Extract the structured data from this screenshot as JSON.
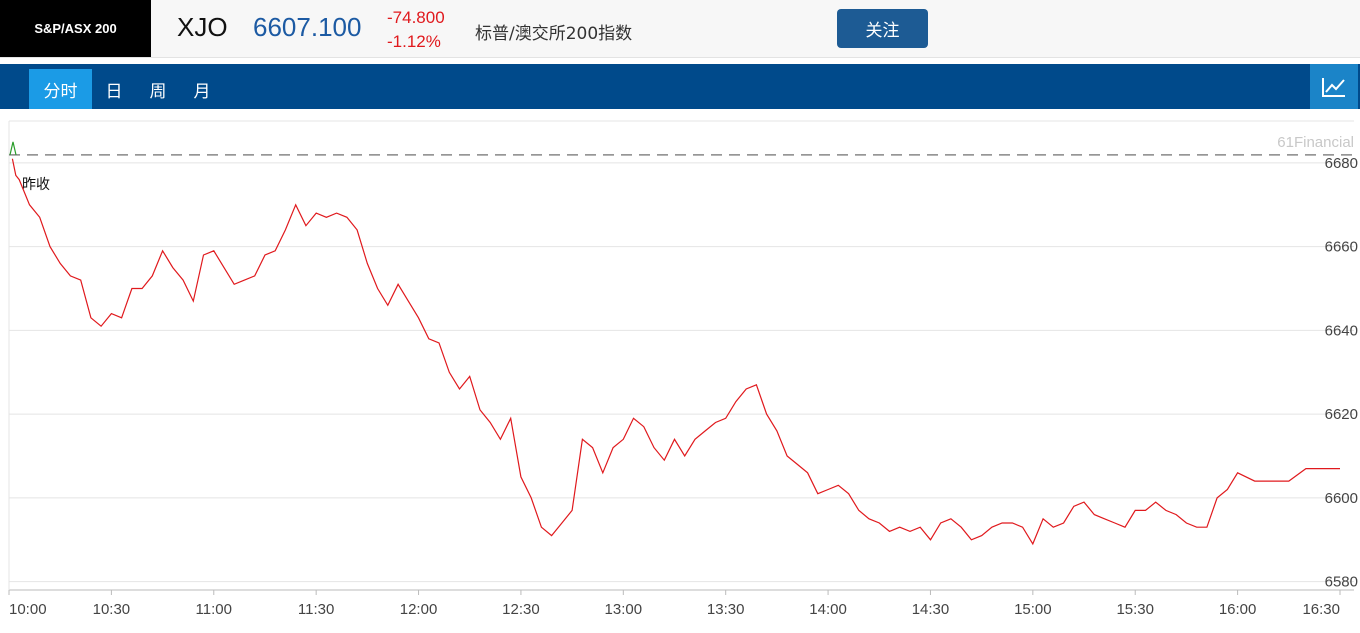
{
  "header": {
    "index_badge": "S&P/ASX 200",
    "symbol": "XJO",
    "price": "6607.100",
    "change": "-74.800",
    "change_pct": "-1.12%",
    "name": "标普/澳交所200指数",
    "follow_label": "关注"
  },
  "tabs": [
    {
      "label": "分时",
      "active": true
    },
    {
      "label": "日",
      "active": false
    },
    {
      "label": "周",
      "active": false
    },
    {
      "label": "月",
      "active": false
    }
  ],
  "chart_toggle_icon": "line-chart-icon",
  "colors": {
    "price_line": "#e0191d",
    "prev_close_up": "#2a9d2a",
    "up": "#2a9d2a",
    "down": "#e0191d",
    "accent": "#004a8b"
  },
  "chart_data": {
    "type": "line",
    "brand": "61Financial",
    "prev_close_label": "昨收",
    "prev_close": 6681.9,
    "x_ticks": [
      "10:00",
      "10:30",
      "11:00",
      "11:30",
      "12:00",
      "12:30",
      "13:00",
      "13:30",
      "14:00",
      "14:30",
      "15:00",
      "15:30",
      "16:00",
      "16:30"
    ],
    "y_ticks": [
      "6580",
      "6600",
      "6620",
      "6640",
      "6660",
      "6680"
    ],
    "ylim": [
      6578,
      6690
    ],
    "xlim": [
      "10:00",
      "16:30"
    ],
    "series": [
      {
        "x": [
          "10:00",
          "10:01",
          "10:02",
          "10:03",
          "10:06",
          "10:09",
          "10:12",
          "10:15",
          "10:18",
          "10:21",
          "10:24",
          "10:27",
          "10:30",
          "10:33",
          "10:36",
          "10:39",
          "10:42",
          "10:45",
          "10:48",
          "10:51",
          "10:54",
          "10:57",
          "11:00",
          "11:03",
          "11:06",
          "11:09",
          "11:12",
          "11:15",
          "11:18",
          "11:21",
          "11:24",
          "11:27",
          "11:30",
          "11:33",
          "11:36",
          "11:39",
          "11:42",
          "11:45",
          "11:48",
          "11:51",
          "11:54",
          "11:57",
          "12:00",
          "12:03",
          "12:06",
          "12:09",
          "12:12",
          "12:15",
          "12:18",
          "12:21",
          "12:24",
          "12:27",
          "12:30",
          "12:33",
          "12:36",
          "12:39",
          "12:42",
          "12:45",
          "12:48",
          "12:51",
          "12:54",
          "12:57",
          "13:00",
          "13:03",
          "13:06",
          "13:09",
          "13:12",
          "13:15",
          "13:18",
          "13:21",
          "13:24",
          "13:27",
          "13:30",
          "13:33",
          "13:36",
          "13:39",
          "13:42",
          "13:45",
          "13:48",
          "13:51",
          "13:54",
          "13:57",
          "14:00",
          "14:03",
          "14:06",
          "14:09",
          "14:12",
          "14:15",
          "14:18",
          "14:21",
          "14:24",
          "14:27",
          "14:30",
          "14:33",
          "14:36",
          "14:39",
          "14:42",
          "14:45",
          "14:48",
          "14:51",
          "14:54",
          "14:57",
          "15:00",
          "15:03",
          "15:06",
          "15:09",
          "15:12",
          "15:15",
          "15:18",
          "15:21",
          "15:24",
          "15:27",
          "15:30",
          "15:33",
          "15:36",
          "15:39",
          "15:42",
          "15:45",
          "15:48",
          "15:51",
          "15:54",
          "15:57",
          "16:00",
          "16:05",
          "16:10",
          "16:15",
          "16:20",
          "16:25",
          "16:30"
        ],
        "values": [
          6685,
          6681,
          6677,
          6676,
          6670,
          6667,
          6660,
          6656,
          6653,
          6652,
          6643,
          6641,
          6644,
          6643,
          6650,
          6650,
          6653,
          6659,
          6655,
          6652,
          6647,
          6658,
          6659,
          6655,
          6651,
          6652,
          6653,
          6658,
          6659,
          6664,
          6670,
          6665,
          6668,
          6667,
          6668,
          6667,
          6664,
          6656,
          6650,
          6646,
          6651,
          6647,
          6643,
          6638,
          6637,
          6630,
          6626,
          6629,
          6621,
          6618,
          6614,
          6619,
          6605,
          6600,
          6593,
          6591,
          6594,
          6597,
          6614,
          6612,
          6606,
          6612,
          6614,
          6619,
          6617,
          6612,
          6609,
          6614,
          6610,
          6614,
          6616,
          6618,
          6619,
          6623,
          6626,
          6627,
          6620,
          6616,
          6610,
          6608,
          6606,
          6601,
          6602,
          6603,
          6601,
          6597,
          6595,
          6594,
          6592,
          6593,
          6592,
          6593,
          6590,
          6594,
          6595,
          6593,
          6590,
          6591,
          6593,
          6594,
          6594,
          6593,
          6589,
          6595,
          6593,
          6594,
          6598,
          6599,
          6596,
          6595,
          6594,
          6593,
          6597,
          6597,
          6599,
          6597,
          6596,
          6594,
          6593,
          6593,
          6600,
          6602,
          6606,
          6604,
          6604,
          6604,
          6607,
          6607,
          6607
        ]
      }
    ]
  }
}
